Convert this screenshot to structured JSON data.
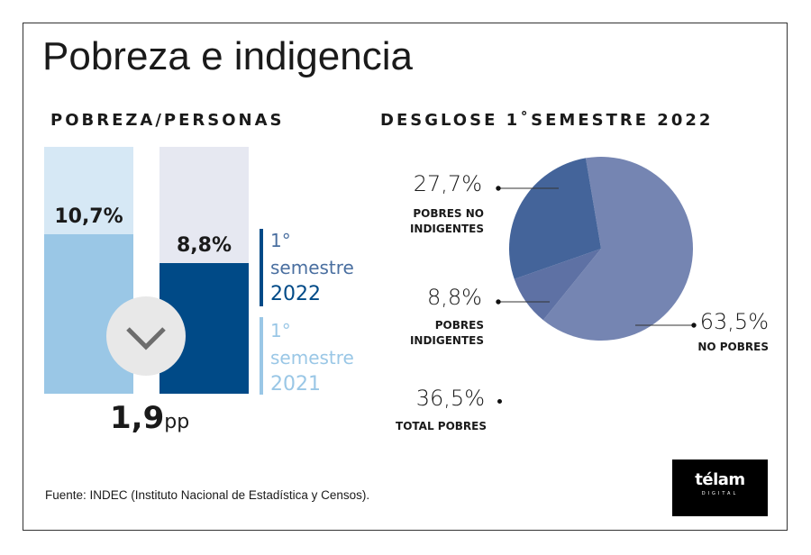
{
  "title": "Pobreza e indigencia",
  "source": "Fuente: INDEC (Instituto Nacional de Estadística y Censos).",
  "logo": {
    "text": "télam",
    "subtext": "DIGITAL"
  },
  "chart_data": [
    {
      "type": "bar",
      "title": "POBREZA/PERSONAS",
      "categories": [
        "1° semestre 2021",
        "1° semestre 2022"
      ],
      "values": [
        10.7,
        8.8
      ],
      "value_labels": [
        "10,7%",
        "8,8%"
      ],
      "colors": [
        "#9ac7e6",
        "#004a87"
      ],
      "track_colors": [
        "#d6e8f5",
        "#e6e8f1"
      ],
      "difference": {
        "value": "1,9",
        "unit": "pp",
        "icon": "chevron-down-icon"
      },
      "legend": [
        {
          "line1": "1°",
          "line2": "semestre",
          "year": "2022",
          "color": "#004a87"
        },
        {
          "line1": "1°",
          "line2": "semestre",
          "year": "2021",
          "color": "#9ac7e6"
        }
      ]
    },
    {
      "type": "pie",
      "title": "DESGLOSE 1˚SEMESTRE 2022",
      "slices": [
        {
          "name": "NO POBRES",
          "value": 63.5,
          "label": "63,5%",
          "color": "#7585b2"
        },
        {
          "name": "POBRES INDIGENTES",
          "value": 8.8,
          "label": "8,8%",
          "color": "#5e71a4"
        },
        {
          "name": "POBRES NO INDIGENTES",
          "value": 27.7,
          "label": "27,7%",
          "color": "#44649a"
        }
      ],
      "total": {
        "label": "36,5%",
        "name": "TOTAL POBRES"
      }
    }
  ]
}
